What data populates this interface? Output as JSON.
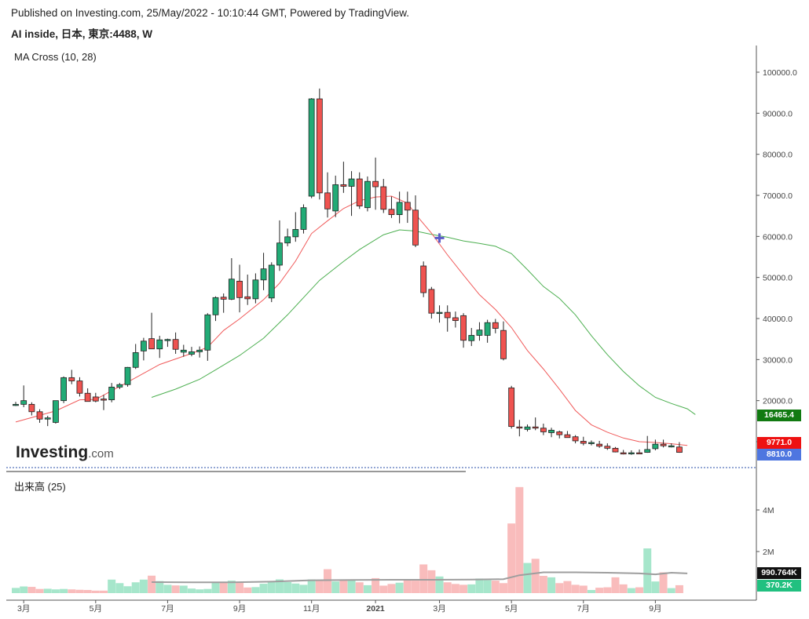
{
  "header": {
    "published": "Published on Investing.com, 25/May/2022 - 10:10:44 GMT, Powered by TradingView.",
    "symbol": "AI inside, 日本, 東京:4488, W"
  },
  "indicator_label": "MA Cross (10, 28)",
  "volume_label": "出来高 (25)",
  "logo": {
    "main": "Investing",
    "suffix": ".com"
  },
  "price_tags": [
    {
      "value": "16465.4",
      "color": "#117a11"
    },
    {
      "value": "9771.0",
      "color": "#ee1111"
    },
    {
      "value": "8810.0",
      "color": "#4e76e0"
    }
  ],
  "volume_tags": [
    {
      "value": "990.764K",
      "color": "#111111"
    },
    {
      "value": "370.2K",
      "color": "#21c080"
    }
  ],
  "colors": {
    "up": "#22ab76",
    "down": "#ef5350",
    "ma_fast": "#f05a5a",
    "ma_slow": "#4caf50",
    "vol_up": "#a6e6cb",
    "vol_down": "#f9bcbc",
    "vol_ma": "#9e9e9e",
    "cross": "#5c5cc8"
  },
  "chart_data": [
    {
      "type": "candlestick",
      "title": "AI inside, 日本, 東京:4488, W",
      "indicator": "MA Cross (10, 28)",
      "ylim": [
        0,
        105000
      ],
      "yticks": [
        "10000.0",
        "20000.0",
        "30000.0",
        "40000.0",
        "50000.0",
        "60000.0",
        "70000.0",
        "80000.0",
        "90000.0",
        "100000.0"
      ],
      "yticks_vals": [
        10000,
        20000,
        30000,
        40000,
        50000,
        60000,
        70000,
        80000,
        90000,
        100000
      ],
      "xticks": [
        {
          "label": "3月",
          "i": 1
        },
        {
          "label": "5月",
          "i": 10
        },
        {
          "label": "7月",
          "i": 19
        },
        {
          "label": "9月",
          "i": 28
        },
        {
          "label": "11月",
          "i": 37
        },
        {
          "label": "2021",
          "i": 45
        },
        {
          "label": "3月",
          "i": 53
        },
        {
          "label": "5月",
          "i": 62
        },
        {
          "label": "7月",
          "i": 71
        },
        {
          "label": "9月",
          "i": 80
        }
      ],
      "candles": [
        [
          19100,
          19700,
          18700,
          19100
        ],
        [
          19100,
          23700,
          18400,
          20000
        ],
        [
          19100,
          19600,
          16400,
          17300
        ],
        [
          17300,
          17900,
          14600,
          15500
        ],
        [
          15500,
          16300,
          13800,
          15800
        ],
        [
          14700,
          20000,
          14400,
          20000
        ],
        [
          20000,
          25900,
          19400,
          25600
        ],
        [
          25600,
          27500,
          24000,
          24800
        ],
        [
          24800,
          25700,
          21000,
          21800
        ],
        [
          21800,
          23000,
          20600,
          19800
        ],
        [
          20900,
          21900,
          19600,
          19900
        ],
        [
          20400,
          21400,
          17700,
          20200
        ],
        [
          20200,
          24300,
          19600,
          23300
        ],
        [
          23300,
          24300,
          22800,
          23900
        ],
        [
          23900,
          28200,
          23400,
          28100
        ],
        [
          28100,
          33800,
          27700,
          31700
        ],
        [
          32100,
          35300,
          29800,
          34500
        ],
        [
          35100,
          41400,
          33400,
          32600
        ],
        [
          32600,
          35800,
          30400,
          34800
        ],
        [
          34800,
          35100,
          33100,
          34900
        ],
        [
          34900,
          36600,
          31400,
          32500
        ],
        [
          31800,
          33600,
          30700,
          32300
        ],
        [
          31300,
          33100,
          30800,
          31900
        ],
        [
          31900,
          33200,
          30500,
          32300
        ],
        [
          32300,
          41300,
          29700,
          40900
        ],
        [
          40900,
          45400,
          39400,
          45100
        ],
        [
          45200,
          46100,
          41400,
          44700
        ],
        [
          44700,
          54700,
          44500,
          49600
        ],
        [
          49100,
          53100,
          41500,
          45100
        ],
        [
          45300,
          50700,
          43300,
          44800
        ],
        [
          44800,
          51000,
          43700,
          49400
        ],
        [
          49400,
          56000,
          46900,
          52100
        ],
        [
          45000,
          53700,
          44000,
          53000
        ],
        [
          53000,
          63900,
          51600,
          58400
        ],
        [
          58400,
          61900,
          57600,
          59900
        ],
        [
          59900,
          65900,
          58700,
          61700
        ],
        [
          61700,
          67800,
          60700,
          67000
        ],
        [
          69800,
          93700,
          69300,
          93500
        ],
        [
          93500,
          96000,
          69000,
          70600
        ],
        [
          70600,
          75600,
          64600,
          66700
        ],
        [
          66200,
          74800,
          64700,
          72600
        ],
        [
          72600,
          78200,
          70600,
          72200
        ],
        [
          72200,
          75900,
          65000,
          74000
        ],
        [
          74000,
          75600,
          66700,
          67400
        ],
        [
          67000,
          74600,
          66100,
          73400
        ],
        [
          73400,
          79200,
          66500,
          72100
        ],
        [
          72100,
          74000,
          65700,
          66600
        ],
        [
          66600,
          69700,
          64500,
          65300
        ],
        [
          65300,
          70900,
          63200,
          68300
        ],
        [
          68300,
          70900,
          63300,
          66400
        ],
        [
          66400,
          70000,
          57400,
          57900
        ],
        [
          52800,
          53900,
          45200,
          46300
        ],
        [
          47100,
          47700,
          40000,
          41300
        ],
        [
          41300,
          43200,
          39000,
          41500
        ],
        [
          41500,
          43200,
          36800,
          40200
        ],
        [
          40200,
          41700,
          37800,
          39500
        ],
        [
          40700,
          41300,
          32900,
          34700
        ],
        [
          34600,
          37700,
          33300,
          35900
        ],
        [
          35900,
          39100,
          34600,
          37200
        ],
        [
          35900,
          39700,
          34100,
          39000
        ],
        [
          39000,
          39900,
          36400,
          37600
        ],
        [
          37100,
          39300,
          29800,
          30200
        ],
        [
          23100,
          23600,
          13200,
          13700
        ],
        [
          13600,
          15300,
          11300,
          13400
        ],
        [
          13000,
          14200,
          12500,
          13600
        ],
        [
          13600,
          15900,
          12800,
          13300
        ],
        [
          13300,
          14400,
          11600,
          12400
        ],
        [
          12200,
          13400,
          11100,
          12800
        ],
        [
          12400,
          12700,
          10800,
          11700
        ],
        [
          11700,
          12600,
          11100,
          11000
        ],
        [
          11200,
          11600,
          9600,
          10200
        ],
        [
          10100,
          11200,
          9100,
          9600
        ],
        [
          9700,
          10300,
          9100,
          9800
        ],
        [
          9400,
          10200,
          8500,
          8900
        ],
        [
          8900,
          9600,
          8000,
          8400
        ],
        [
          8400,
          8700,
          7400,
          7500
        ],
        [
          7300,
          8000,
          6900,
          7000
        ],
        [
          7100,
          7900,
          6800,
          7300
        ],
        [
          7300,
          8100,
          7200,
          7200
        ],
        [
          7400,
          11400,
          7300,
          8100
        ],
        [
          8300,
          10500,
          7900,
          9400
        ],
        [
          9400,
          10500,
          8600,
          9000
        ],
        [
          9000,
          9600,
          8600,
          9000
        ],
        [
          8700,
          9900,
          7300,
          7400
        ]
      ],
      "ma_fast": [
        [
          0,
          14800
        ],
        [
          5,
          17500
        ],
        [
          8,
          20200
        ],
        [
          10,
          20300
        ],
        [
          14,
          24500
        ],
        [
          18,
          28800
        ],
        [
          22,
          31500
        ],
        [
          24,
          33000
        ],
        [
          26,
          37100
        ],
        [
          28,
          39900
        ],
        [
          31,
          44600
        ],
        [
          33,
          48600
        ],
        [
          35,
          54000
        ],
        [
          37,
          60700
        ],
        [
          39,
          63800
        ],
        [
          41,
          66800
        ],
        [
          43,
          68700
        ],
        [
          45,
          69600
        ],
        [
          47,
          69800
        ],
        [
          49,
          68100
        ],
        [
          50,
          65400
        ],
        [
          52,
          60800
        ],
        [
          54,
          55500
        ],
        [
          56,
          50600
        ],
        [
          58,
          45800
        ],
        [
          60,
          42200
        ],
        [
          62,
          37800
        ],
        [
          64,
          32200
        ],
        [
          66,
          27700
        ],
        [
          68,
          22800
        ],
        [
          70,
          17600
        ],
        [
          72,
          14100
        ],
        [
          74,
          12300
        ],
        [
          76,
          10900
        ],
        [
          78,
          10000
        ],
        [
          80,
          9800
        ],
        [
          82,
          9500
        ],
        [
          84,
          9100
        ]
      ],
      "ma_slow": [
        [
          17,
          20800
        ],
        [
          20,
          22800
        ],
        [
          23,
          25200
        ],
        [
          25,
          27500
        ],
        [
          28,
          31000
        ],
        [
          31,
          35200
        ],
        [
          34,
          40900
        ],
        [
          36,
          45100
        ],
        [
          38,
          49300
        ],
        [
          41,
          53900
        ],
        [
          43,
          56800
        ],
        [
          46,
          60400
        ],
        [
          48,
          61600
        ],
        [
          50,
          61300
        ],
        [
          52,
          60500
        ],
        [
          54,
          59800
        ],
        [
          56,
          58900
        ],
        [
          58,
          58300
        ],
        [
          60,
          57600
        ],
        [
          62,
          55800
        ],
        [
          64,
          51900
        ],
        [
          66,
          47800
        ],
        [
          68,
          44900
        ],
        [
          70,
          40900
        ],
        [
          72,
          35800
        ],
        [
          74,
          31200
        ],
        [
          76,
          27100
        ],
        [
          78,
          23600
        ],
        [
          80,
          20800
        ],
        [
          82,
          19300
        ],
        [
          84,
          18000
        ],
        [
          85,
          16600
        ]
      ],
      "cross_marker": {
        "i": 53,
        "value": 59600
      }
    },
    {
      "type": "bar",
      "title": "出来高 (25)",
      "ylim": [
        0,
        5600000
      ],
      "yticks": [
        "2M",
        "4M"
      ],
      "yticks_vals": [
        2000000,
        4000000
      ],
      "volumes": [
        250000,
        320000,
        300000,
        200000,
        210000,
        180000,
        200000,
        180000,
        160000,
        150000,
        120000,
        120000,
        650000,
        480000,
        330000,
        520000,
        650000,
        840000,
        580000,
        400000,
        370000,
        360000,
        220000,
        180000,
        200000,
        500000,
        550000,
        600000,
        520000,
        270000,
        290000,
        450000,
        560000,
        660000,
        530000,
        460000,
        400000,
        660000,
        620000,
        1150000,
        560000,
        610000,
        610000,
        520000,
        380000,
        720000,
        360000,
        440000,
        500000,
        620000,
        600000,
        1380000,
        1100000,
        800000,
        520000,
        440000,
        400000,
        420000,
        700000,
        620000,
        600000,
        480000,
        3350000,
        5100000,
        1450000,
        1650000,
        830000,
        760000,
        480000,
        580000,
        400000,
        360000,
        150000,
        260000,
        280000,
        760000,
        420000,
        240000,
        280000,
        2150000,
        560000,
        1000000,
        240000,
        380000
      ],
      "vol_ma": [
        [
          17,
          530000
        ],
        [
          22,
          520000
        ],
        [
          27,
          520000
        ],
        [
          32,
          550000
        ],
        [
          37,
          620000
        ],
        [
          42,
          630000
        ],
        [
          47,
          640000
        ],
        [
          52,
          640000
        ],
        [
          57,
          650000
        ],
        [
          61,
          670000
        ],
        [
          63,
          860000
        ],
        [
          66,
          1000000
        ],
        [
          70,
          1000000
        ],
        [
          74,
          980000
        ],
        [
          78,
          950000
        ],
        [
          80,
          900000
        ],
        [
          82,
          980000
        ],
        [
          84,
          950000
        ]
      ]
    }
  ]
}
